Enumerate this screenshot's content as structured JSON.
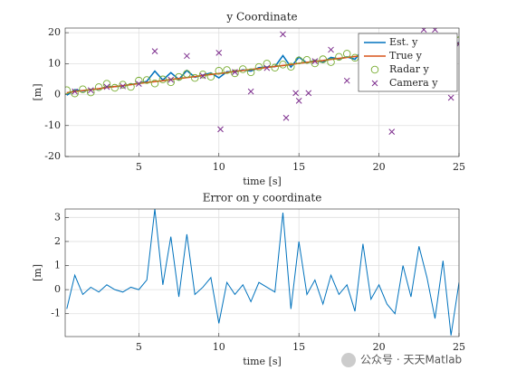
{
  "chart_data": [
    {
      "type": "line",
      "title": "y Coordinate",
      "xlabel": "time [s]",
      "ylabel": "[m]",
      "xlim": [
        0.4,
        25
      ],
      "ylim": [
        -20,
        21.5
      ],
      "xticks": [
        5,
        10,
        15,
        20,
        25
      ],
      "yticks": [
        -20,
        -10,
        0,
        10,
        20
      ],
      "grid": true,
      "legend": "northeast",
      "x": [
        0.5,
        1,
        1.5,
        2,
        2.5,
        3,
        3.5,
        4,
        4.5,
        5,
        5.5,
        6,
        6.5,
        7,
        7.5,
        8,
        8.5,
        9,
        9.5,
        10,
        10.5,
        11,
        11.5,
        12,
        12.5,
        13,
        13.5,
        14,
        14.5,
        15,
        15.5,
        16,
        16.5,
        17,
        17.5,
        18,
        18.5,
        19,
        19.5,
        20,
        20.5,
        21,
        21.5,
        22,
        22.5,
        23,
        23.5,
        24,
        24.5,
        25
      ],
      "series": [
        {
          "name": "Est. y",
          "color": "#0072bd",
          "style": "line",
          "values": [
            -0.2,
            1.6,
            1.1,
            1.7,
            1.8,
            2.5,
            2.6,
            2.8,
            3.3,
            3.6,
            4.3,
            7.6,
            4.7,
            7.1,
            4.9,
            7.8,
            5.6,
            6.3,
            7.0,
            5.4,
            7.4,
            7.3,
            8.0,
            7.6,
            8.7,
            8.9,
            9.0,
            12.6,
            8.9,
            12.1,
            10.2,
            11.1,
            10.4,
            12.0,
            11.5,
            12.2,
            11.4,
            14.6,
            12.6,
            13.5,
            13.0,
            13.0,
            15.3,
            14.3,
            16.7,
            15.8,
            14.4,
            17.1,
            14.3,
            16.9
          ]
        },
        {
          "name": "True y",
          "color": "#d95319",
          "style": "line",
          "values": [
            0.6,
            1.0,
            1.3,
            1.6,
            1.9,
            2.3,
            2.6,
            2.9,
            3.2,
            3.6,
            3.9,
            4.2,
            4.5,
            4.9,
            5.2,
            5.5,
            5.8,
            6.2,
            6.5,
            6.8,
            7.1,
            7.5,
            7.8,
            8.1,
            8.4,
            8.8,
            9.1,
            9.4,
            9.7,
            10.1,
            10.4,
            10.7,
            11.0,
            11.4,
            11.7,
            12.0,
            12.3,
            12.7,
            13.0,
            13.3,
            13.6,
            14.0,
            14.3,
            14.6,
            14.9,
            15.3,
            15.6,
            15.9,
            16.2,
            16.6
          ]
        },
        {
          "name": "Radar y",
          "color": "#77ac30",
          "style": "circle",
          "values": [
            1.4,
            0.4,
            1.7,
            0.7,
            2.4,
            3.5,
            2.2,
            3.2,
            2.5,
            4.5,
            4.7,
            3.6,
            4.9,
            4.0,
            5.7,
            6.7,
            5.4,
            6.5,
            5.8,
            7.7,
            7.9,
            6.9,
            8.2,
            7.2,
            8.9,
            10.0,
            8.7,
            9.7,
            9.0,
            11.0,
            11.2,
            10.1,
            11.4,
            10.5,
            12.2,
            13.2,
            11.9,
            13.0,
            12.3,
            14.2,
            14.4,
            13.4,
            14.7,
            13.7,
            15.4,
            16.5,
            15.2,
            16.2,
            15.5,
            17.5
          ]
        },
        {
          "name": "Camera y",
          "color": "#7e2f8e",
          "style": "x",
          "x": [
            1,
            2,
            3,
            4,
            5,
            6,
            7,
            8,
            9,
            10,
            10.1,
            11,
            12,
            13,
            14,
            14.2,
            14.8,
            15,
            15.6,
            16,
            17,
            18,
            19,
            20,
            20.8,
            21.5,
            22.8,
            23.5,
            24.5,
            25
          ],
          "values": [
            1.0,
            1.4,
            2.5,
            2.7,
            3.5,
            14,
            4.8,
            12.5,
            6.0,
            13.5,
            -11.2,
            7.3,
            1.0,
            8.6,
            19.5,
            -7.5,
            0.5,
            -2,
            0.5,
            10.8,
            14.5,
            4.5,
            12.6,
            13.2,
            -12,
            14.2,
            21,
            21,
            -1,
            16.3
          ]
        }
      ]
    },
    {
      "type": "line",
      "title": "Error on y coordinate",
      "xlabel": "time [s]",
      "ylabel": "[m]",
      "xlim": [
        0.4,
        25
      ],
      "ylim": [
        -1.95,
        3.35
      ],
      "xticks": [
        5,
        10,
        15,
        20,
        25
      ],
      "yticks": [
        -1,
        0,
        1,
        2,
        3
      ],
      "grid": true,
      "x": [
        0.5,
        1,
        1.5,
        2,
        2.5,
        3,
        3.5,
        4,
        4.5,
        5,
        5.5,
        6,
        6.5,
        7,
        7.5,
        8,
        8.5,
        9,
        9.5,
        10,
        10.5,
        11,
        11.5,
        12,
        12.5,
        13,
        13.5,
        14,
        14.5,
        15,
        15.5,
        16,
        16.5,
        17,
        17.5,
        18,
        18.5,
        19,
        19.5,
        20,
        20.5,
        21,
        21.5,
        22,
        22.5,
        23,
        23.5,
        24,
        24.5,
        25
      ],
      "series": [
        {
          "color": "#0072bd",
          "style": "line",
          "values": [
            -0.8,
            0.6,
            -0.2,
            0.1,
            -0.1,
            0.2,
            0.0,
            -0.1,
            0.1,
            0.0,
            0.4,
            3.35,
            0.2,
            2.2,
            -0.3,
            2.3,
            -0.2,
            0.1,
            0.5,
            -1.4,
            0.3,
            -0.2,
            0.2,
            -0.5,
            0.3,
            0.1,
            -0.1,
            3.2,
            -0.8,
            2.0,
            -0.2,
            0.4,
            -0.6,
            0.6,
            -0.2,
            0.2,
            -0.9,
            1.9,
            -0.4,
            0.2,
            -0.6,
            -1.0,
            1.0,
            -0.3,
            1.8,
            0.5,
            -1.2,
            1.2,
            -1.9,
            0.3
          ]
        }
      ]
    }
  ],
  "watermark": "公众号 · 天天Matlab"
}
